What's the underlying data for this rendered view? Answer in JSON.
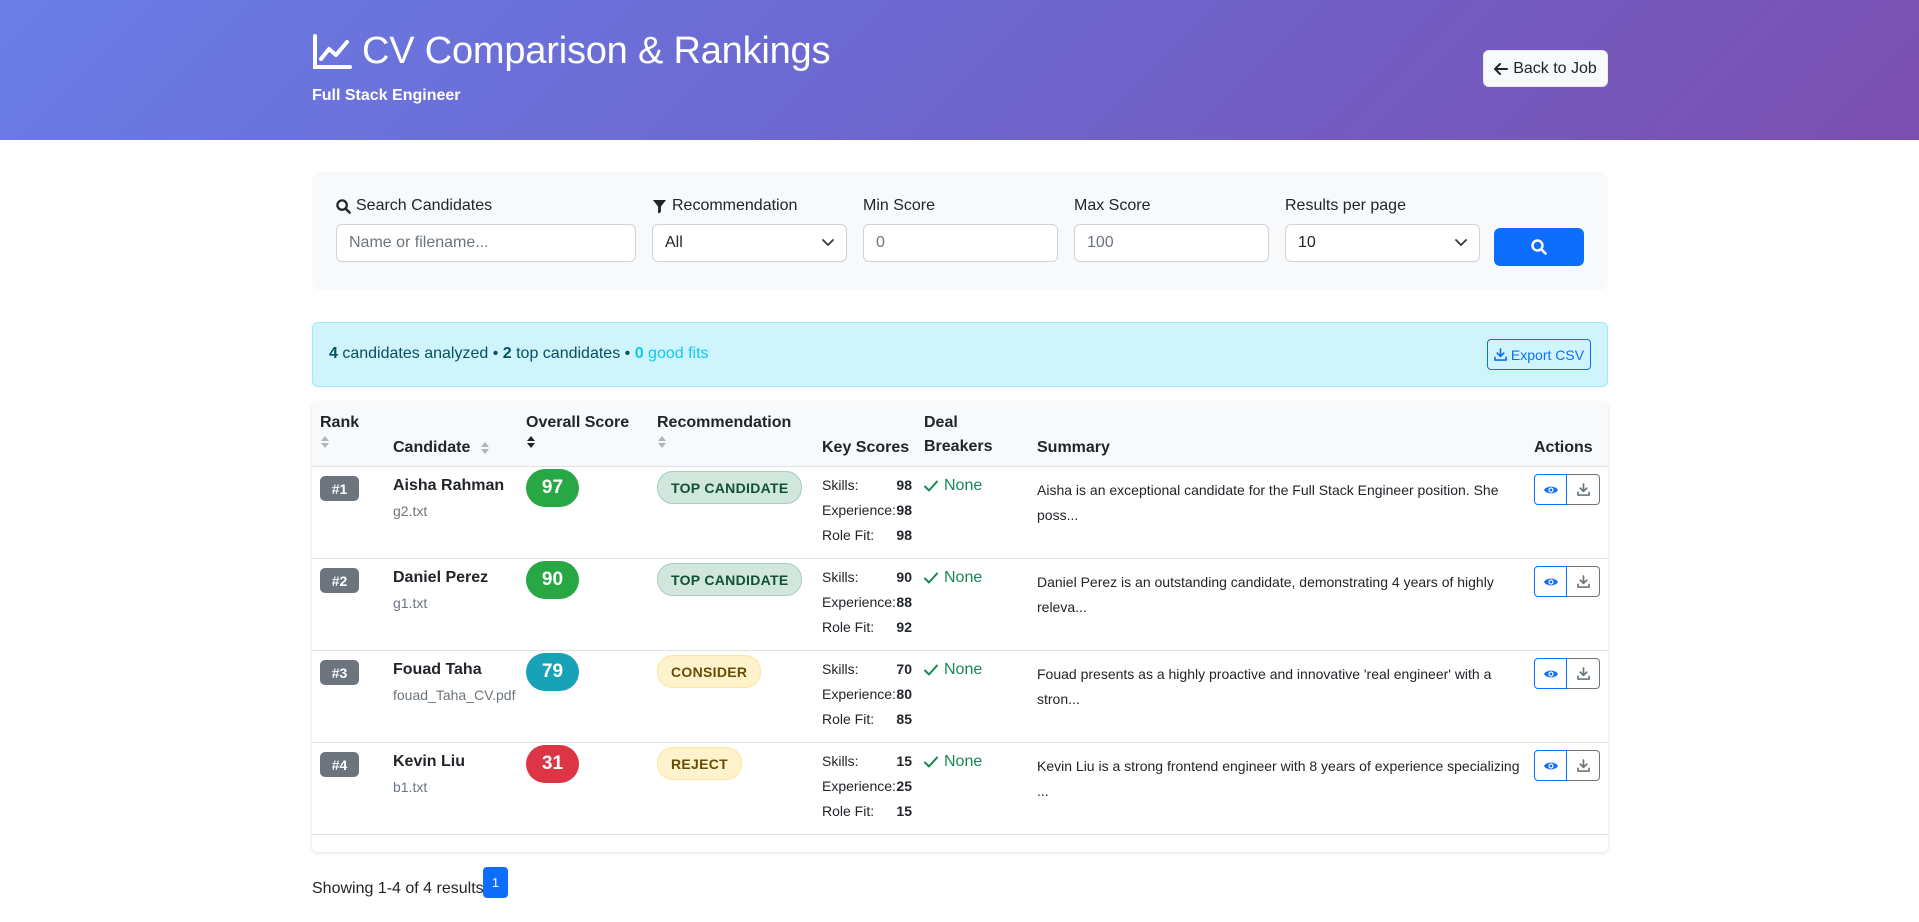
{
  "header": {
    "title": "CV Comparison & Rankings",
    "subtitle": "Full Stack Engineer",
    "back_label": "Back to Job"
  },
  "filters": {
    "search_label": "Search Candidates",
    "search_placeholder": "Name or filename...",
    "recommendation_label": "Recommendation",
    "recommendation_value": "All",
    "min_label": "Min Score",
    "min_placeholder": "0",
    "max_label": "Max Score",
    "max_placeholder": "100",
    "per_page_label": "Results per page",
    "per_page_value": "10"
  },
  "summary": {
    "analyzed_count": "4",
    "analyzed_text": "candidates analyzed •",
    "top_count": "2",
    "top_text": "top candidates •",
    "good_count": "0",
    "good_text": "good fits",
    "export_label": "Export CSV"
  },
  "table": {
    "headers": {
      "rank": "Rank",
      "candidate": "Candidate",
      "overall": "Overall Score",
      "recommendation": "Recommendation",
      "key_scores": "Key Scores",
      "deal_breakers_1": "Deal",
      "deal_breakers_2": "Breakers",
      "summary": "Summary",
      "actions": "Actions"
    },
    "score_labels": {
      "skills": "Skills:",
      "experience": "Experience:",
      "role_fit": "Role Fit:"
    },
    "rows": [
      {
        "rank": "#1",
        "name": "Aisha Rahman",
        "file": "g2.txt",
        "score": "97",
        "score_color": "#28a745",
        "recommendation": "TOP CANDIDATE",
        "rec_bg": "#d1e7dd",
        "rec_fg": "#0f5132",
        "rec_border": "#a3cfbb",
        "skills": "98",
        "experience": "98",
        "role_fit": "98",
        "deal_breakers": "None",
        "summary": "Aisha is an exceptional candidate for the Full Stack Engineer position. She poss..."
      },
      {
        "rank": "#2",
        "name": "Daniel Perez",
        "file": "g1.txt",
        "score": "90",
        "score_color": "#28a745",
        "recommendation": "TOP CANDIDATE",
        "rec_bg": "#d1e7dd",
        "rec_fg": "#0f5132",
        "rec_border": "#a3cfbb",
        "skills": "90",
        "experience": "88",
        "role_fit": "92",
        "deal_breakers": "None",
        "summary": "Daniel Perez is an outstanding candidate, demonstrating 4 years of highly releva..."
      },
      {
        "rank": "#3",
        "name": "Fouad Taha",
        "file": "fouad_Taha_CV.pdf",
        "score": "79",
        "score_color": "#17a2b8",
        "recommendation": "CONSIDER",
        "rec_bg": "#fff3cd",
        "rec_fg": "#664d03",
        "rec_border": "#ffe69c",
        "skills": "70",
        "experience": "80",
        "role_fit": "85",
        "deal_breakers": "None",
        "summary": "Fouad presents as a highly proactive and innovative 'real engineer' with a stron..."
      },
      {
        "rank": "#4",
        "name": "Kevin Liu",
        "file": "b1.txt",
        "score": "31",
        "score_color": "#dc3545",
        "recommendation": "REJECT",
        "rec_bg": "#fff3cd",
        "rec_fg": "#664d03",
        "rec_border": "#ffe69c",
        "skills": "15",
        "experience": "25",
        "role_fit": "15",
        "deal_breakers": "None",
        "summary": "Kevin Liu is a strong frontend engineer with 8 years of experience specializing ..."
      }
    ]
  },
  "pagination": {
    "showing": "Showing 1-4 of 4 results",
    "current_page": "1"
  },
  "colors": {
    "primary": "#0d6efd",
    "success": "#198754",
    "header_gradient_start": "#6a7de6",
    "header_gradient_end": "#7b4fb0"
  }
}
